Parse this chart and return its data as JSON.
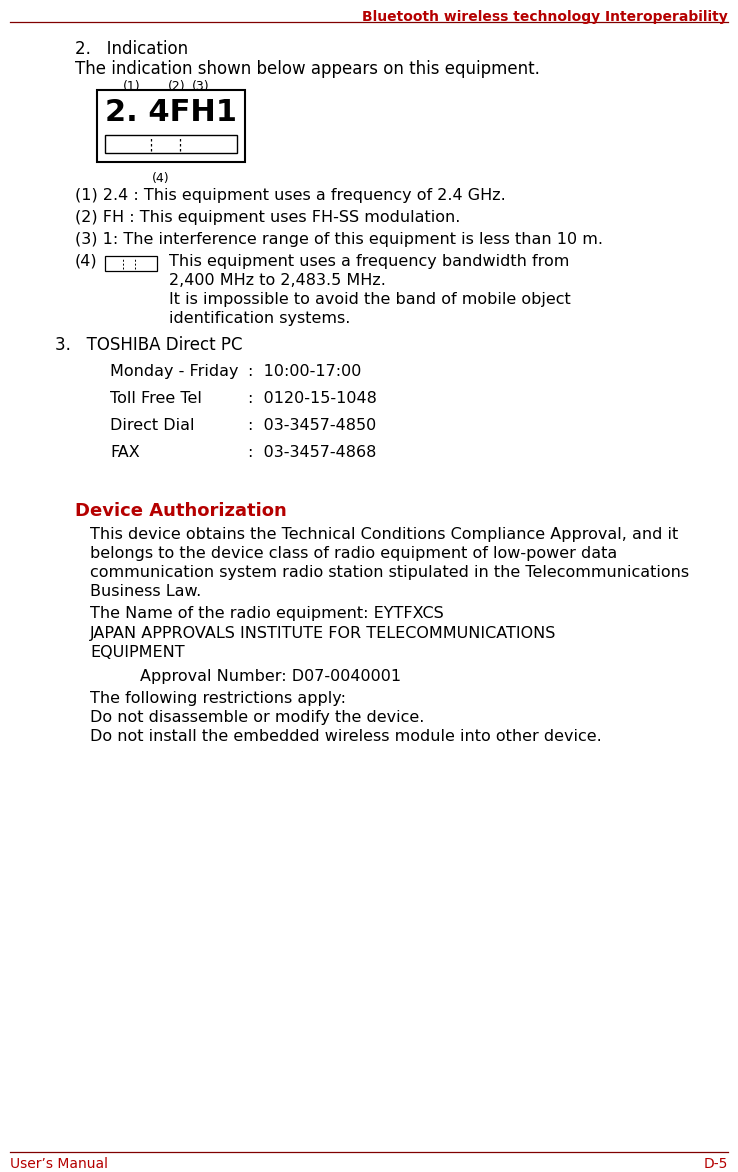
{
  "header_text": "Bluetooth wireless technology Interoperability",
  "header_color": "#b50000",
  "footer_left": "User’s Manual",
  "footer_right": "D-5",
  "footer_color": "#b50000",
  "bg_color": "#ffffff",
  "body_color": "#000000",
  "section2_title": "2.   Indication",
  "section2_intro": "The indication shown below appears on this equipment.",
  "label_1": "(1)",
  "label_2": "(2)",
  "label_3": "(3)",
  "label_4": "(4)",
  "item1": "(1) 2.4 : This equipment uses a frequency of 2.4 GHz.",
  "item2": "(2) FH : This equipment uses FH-SS modulation.",
  "item3": "(3) 1: The interference range of this equipment is less than 10 m.",
  "item4_prefix": "(4)",
  "item4_line1": "This equipment uses a frequency bandwidth from",
  "item4_line2": "2,400 MHz to 2,483.5 MHz.",
  "item4_line3": "It is impossible to avoid the band of mobile object",
  "item4_line4": "identification systems.",
  "section3_title": "3.   TOSHIBA Direct PC",
  "contact_row1_label": "Monday - Friday",
  "contact_row1_value": ":  10:00-17:00",
  "contact_row2_label": "Toll Free Tel",
  "contact_row2_value": ":  0120-15-1048",
  "contact_row3_label": "Direct Dial",
  "contact_row3_value": ":  03-3457-4850",
  "contact_row4_label": "FAX",
  "contact_row4_value": ":  03-3457-4868",
  "device_auth_title": "Device Authorization",
  "device_auth_color": "#b50000",
  "para1_lines": [
    "This device obtains the Technical Conditions Compliance Approval, and it",
    "belongs to the device class of radio equipment of low-power data",
    "communication system radio station stipulated in the Telecommunications",
    "Business Law."
  ],
  "para2": "The Name of the radio equipment: EYTFXCS",
  "para3_lines": [
    "JAPAN APPROVALS INSTITUTE FOR TELECOMMUNICATIONS",
    "EQUIPMENT"
  ],
  "para4": "Approval Number: D07-0040001",
  "para5": "The following restrictions apply:",
  "para6": "Do not disassemble or modify the device.",
  "para7": "Do not install the embedded wireless module into other device."
}
